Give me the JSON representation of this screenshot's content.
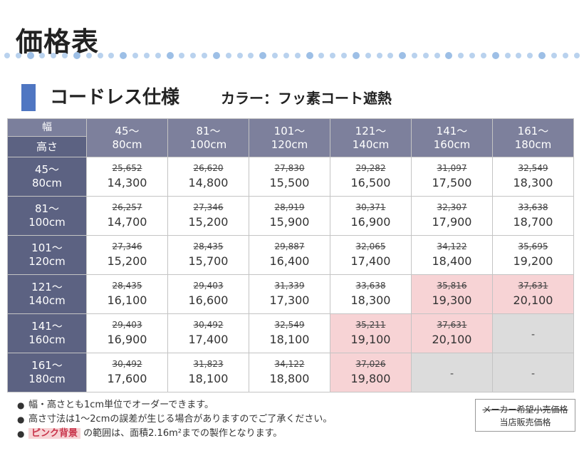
{
  "page": {
    "title": "価格表"
  },
  "section": {
    "title": "コードレス仕様",
    "subtitle": "カラー：フッ素コート遮熱"
  },
  "table": {
    "corner_width_label": "幅",
    "corner_height_label": "高さ",
    "columns": [
      {
        "line1": "45〜",
        "line2": "80cm"
      },
      {
        "line1": "81〜",
        "line2": "100cm"
      },
      {
        "line1": "101〜",
        "line2": "120cm"
      },
      {
        "line1": "121〜",
        "line2": "140cm"
      },
      {
        "line1": "141〜",
        "line2": "160cm"
      },
      {
        "line1": "161〜",
        "line2": "180cm"
      }
    ],
    "rows": [
      {
        "line1": "45〜",
        "line2": "80cm",
        "cells": [
          {
            "orig": "25,652",
            "sale": "14,300",
            "status": "normal"
          },
          {
            "orig": "26,620",
            "sale": "14,800",
            "status": "normal"
          },
          {
            "orig": "27,830",
            "sale": "15,500",
            "status": "normal"
          },
          {
            "orig": "29,282",
            "sale": "16,500",
            "status": "normal"
          },
          {
            "orig": "31,097",
            "sale": "17,500",
            "status": "normal"
          },
          {
            "orig": "32,549",
            "sale": "18,300",
            "status": "normal"
          }
        ]
      },
      {
        "line1": "81〜",
        "line2": "100cm",
        "cells": [
          {
            "orig": "26,257",
            "sale": "14,700",
            "status": "normal"
          },
          {
            "orig": "27,346",
            "sale": "15,200",
            "status": "normal"
          },
          {
            "orig": "28,919",
            "sale": "15,900",
            "status": "normal"
          },
          {
            "orig": "30,371",
            "sale": "16,900",
            "status": "normal"
          },
          {
            "orig": "32,307",
            "sale": "17,900",
            "status": "normal"
          },
          {
            "orig": "33,638",
            "sale": "18,700",
            "status": "normal"
          }
        ]
      },
      {
        "line1": "101〜",
        "line2": "120cm",
        "cells": [
          {
            "orig": "27,346",
            "sale": "15,200",
            "status": "normal"
          },
          {
            "orig": "28,435",
            "sale": "15,700",
            "status": "normal"
          },
          {
            "orig": "29,887",
            "sale": "16,400",
            "status": "normal"
          },
          {
            "orig": "32,065",
            "sale": "17,400",
            "status": "normal"
          },
          {
            "orig": "34,122",
            "sale": "18,400",
            "status": "normal"
          },
          {
            "orig": "35,695",
            "sale": "19,200",
            "status": "normal"
          }
        ]
      },
      {
        "line1": "121〜",
        "line2": "140cm",
        "cells": [
          {
            "orig": "28,435",
            "sale": "16,100",
            "status": "normal"
          },
          {
            "orig": "29,403",
            "sale": "16,600",
            "status": "normal"
          },
          {
            "orig": "31,339",
            "sale": "17,300",
            "status": "normal"
          },
          {
            "orig": "33,638",
            "sale": "18,300",
            "status": "normal"
          },
          {
            "orig": "35,816",
            "sale": "19,300",
            "status": "pink"
          },
          {
            "orig": "37,631",
            "sale": "20,100",
            "status": "pink"
          }
        ]
      },
      {
        "line1": "141〜",
        "line2": "160cm",
        "cells": [
          {
            "orig": "29,403",
            "sale": "16,900",
            "status": "normal"
          },
          {
            "orig": "30,492",
            "sale": "17,400",
            "status": "normal"
          },
          {
            "orig": "32,549",
            "sale": "18,100",
            "status": "normal"
          },
          {
            "orig": "35,211",
            "sale": "19,100",
            "status": "pink"
          },
          {
            "orig": "37,631",
            "sale": "20,100",
            "status": "pink"
          },
          {
            "orig": "",
            "sale": "-",
            "status": "na"
          }
        ]
      },
      {
        "line1": "161〜",
        "line2": "180cm",
        "cells": [
          {
            "orig": "30,492",
            "sale": "17,600",
            "status": "normal"
          },
          {
            "orig": "31,823",
            "sale": "18,100",
            "status": "normal"
          },
          {
            "orig": "34,122",
            "sale": "18,800",
            "status": "normal"
          },
          {
            "orig": "37,026",
            "sale": "19,800",
            "status": "pink"
          },
          {
            "orig": "",
            "sale": "-",
            "status": "na"
          },
          {
            "orig": "",
            "sale": "-",
            "status": "na"
          }
        ]
      }
    ]
  },
  "notes": {
    "bullet": "●",
    "n1": "幅・高さとも1cm単位でオーダーできます。",
    "n2": "高さ寸法は1〜2cmの誤差が生じる場合がありますのでご了承ください。",
    "n3_highlight": "ピンク背景",
    "n3_rest": "の範囲は、面積2.16m²までの製作となります。"
  },
  "legend": {
    "original_label": "メーカー希望小売価格",
    "sale_label": "当店販売価格"
  },
  "colors": {
    "accent": "#4f76c2",
    "header_dark": "#5c6282",
    "header_light": "#7d809c",
    "pink_bg": "#f7d3d5",
    "na_bg": "#dcdcdc"
  }
}
